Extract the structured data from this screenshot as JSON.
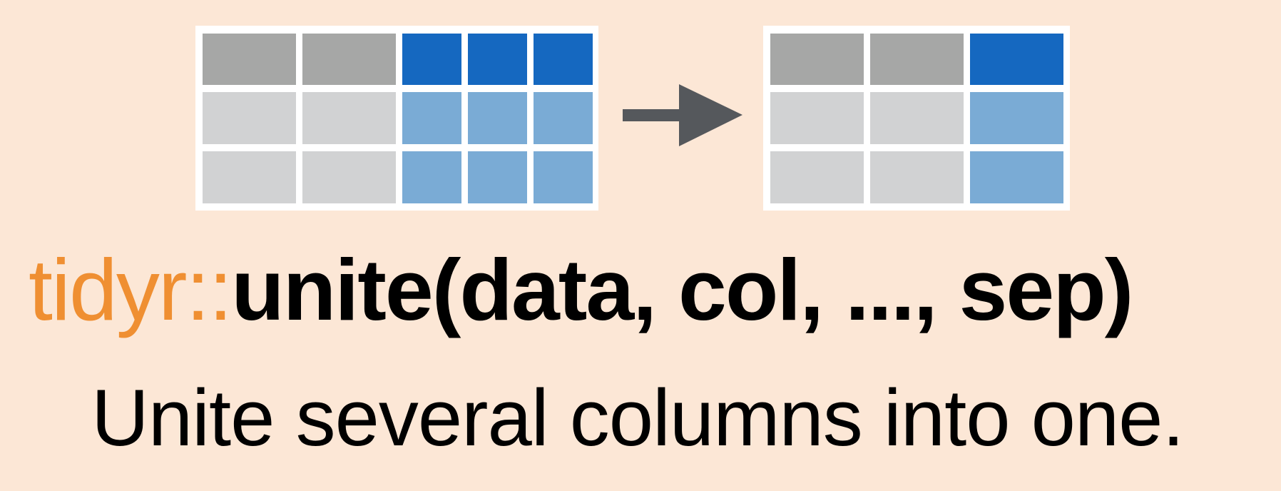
{
  "colors": {
    "background": "#fce7d6",
    "border": "#ffffff",
    "header_gray": "#a6a7a6",
    "body_gray": "#d1d2d3",
    "header_blue": "#1568c0",
    "body_blue": "#7aabd5",
    "arrow": "#55585c",
    "prefix": "#ef8f32",
    "text": "#000000"
  },
  "diagram": {
    "left_table": {
      "columns": [
        "gray",
        "gray",
        "blue",
        "blue",
        "blue"
      ],
      "rows": 3
    },
    "right_table": {
      "columns": [
        "gray",
        "gray",
        "blue"
      ],
      "rows": 3
    },
    "arrow_icon": "right-arrow-icon"
  },
  "function": {
    "prefix": "tidyr::",
    "call": "unite(data, col, ..., sep)"
  },
  "description": "Unite several columns into one."
}
